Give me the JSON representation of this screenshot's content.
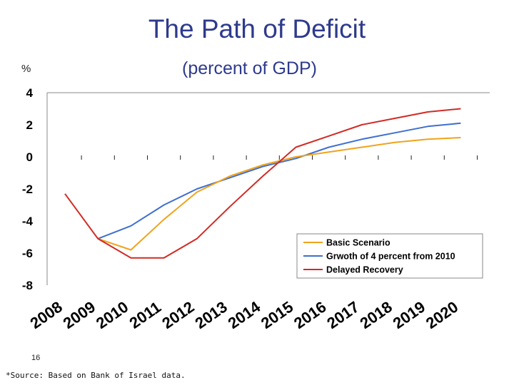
{
  "slide": {
    "title": "The Path of Deficit",
    "unit_label": "%",
    "page_number": "16",
    "source_note": "*Source: Based on Bank of Israel data."
  },
  "chart_data": {
    "type": "line",
    "title": "",
    "subtitle": "(percent of GDP)",
    "ylabel": "%",
    "xlabel": "",
    "ylim": [
      -8,
      4
    ],
    "yticks": [
      4,
      2,
      0,
      -2,
      -4,
      -6,
      -8
    ],
    "categories": [
      "2008",
      "2009",
      "2010",
      "2011",
      "2012",
      "2013",
      "2014",
      "2015",
      "2016",
      "2017",
      "2018",
      "2019",
      "2020"
    ],
    "legend_position": "bottom-right",
    "grid": false,
    "series": [
      {
        "name": "Basic Scenario",
        "color": "#f0a31c",
        "values": [
          null,
          -5.1,
          -5.8,
          -3.9,
          -2.2,
          -1.2,
          -0.5,
          0.0,
          0.3,
          0.6,
          0.9,
          1.1,
          1.2
        ]
      },
      {
        "name": "Grwoth of 4 percent from 2010",
        "color": "#3f6fcf",
        "values": [
          null,
          -5.1,
          -4.3,
          -3.0,
          -2.0,
          -1.3,
          -0.6,
          -0.1,
          0.6,
          1.1,
          1.5,
          1.9,
          2.1
        ]
      },
      {
        "name": "Delayed Recovery",
        "color": "#d12b25",
        "values": [
          -2.3,
          -5.1,
          -6.3,
          -6.3,
          -5.1,
          -3.1,
          -1.2,
          0.6,
          1.3,
          2.0,
          2.4,
          2.8,
          3.0
        ]
      }
    ]
  }
}
